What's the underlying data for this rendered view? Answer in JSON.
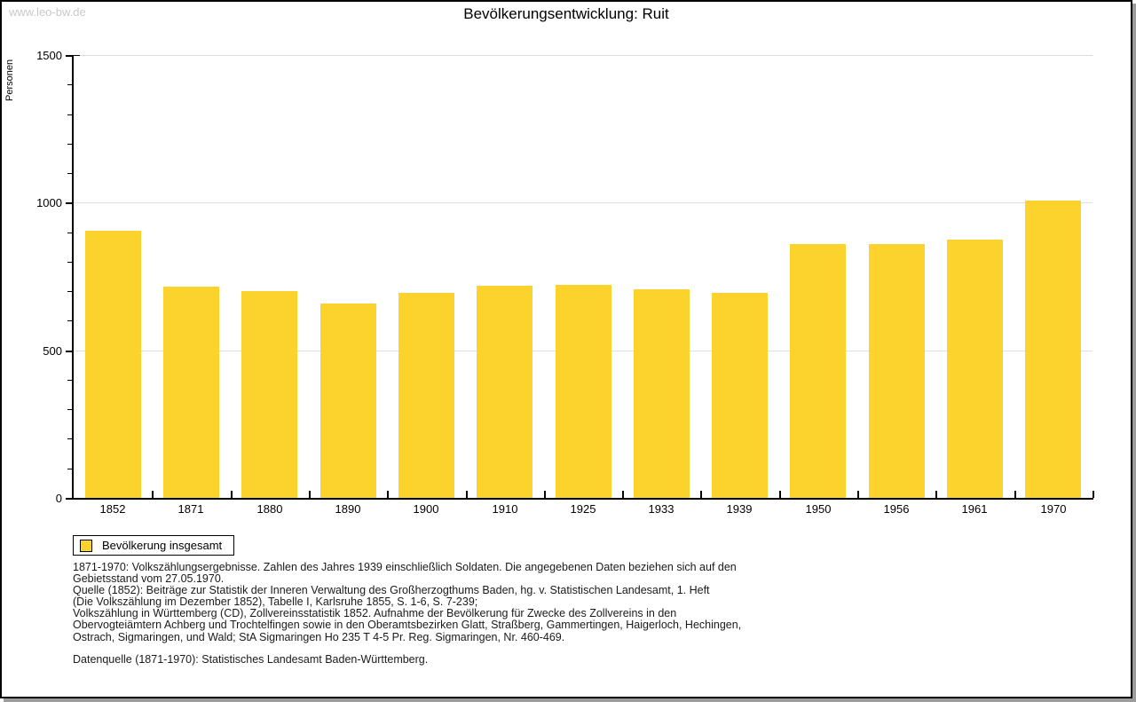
{
  "page": {
    "watermark": "www.leo-bw.de",
    "title": "Bevölkerungsentwicklung: Ruit"
  },
  "chart_data": {
    "type": "bar",
    "title": "Bevölkerungsentwicklung: Ruit",
    "ylabel": "Personen",
    "xlabel": "",
    "categories": [
      "1852",
      "1871",
      "1880",
      "1890",
      "1900",
      "1910",
      "1925",
      "1933",
      "1939",
      "1950",
      "1956",
      "1961",
      "1970"
    ],
    "values": [
      905,
      714,
      700,
      658,
      693,
      719,
      722,
      705,
      695,
      860,
      860,
      876,
      1008
    ],
    "ylim": [
      0,
      1500
    ],
    "ytick_labels": [
      "0",
      "500",
      "1000",
      "1500"
    ],
    "yticks_major": [
      0,
      500,
      1000,
      1500
    ],
    "ytick_minor_step": 100,
    "grid": "horizontal-major",
    "legend_position": "bottom-left",
    "series_name": "Bevölkerung insgesamt",
    "bar_color": "#FCD22D"
  },
  "legend": {
    "label": "Bevölkerung insgesamt",
    "swatch_color": "#FCD22D"
  },
  "footnotes": {
    "lines": [
      "1871-1970: Volkszählungsergebnisse. Zahlen des Jahres 1939 einschließlich Soldaten. Die angegebenen Daten beziehen sich auf den",
      "Gebietsstand vom 27.05.1970.",
      "Quelle (1852): Beiträge zur Statistik der Inneren Verwaltung des Großherzogthums Baden, hg. v. Statistischen Landesamt, 1. Heft",
      "(Die Volkszählung im Dezember 1852), Tabelle I, Karlsruhe 1855, S. 1-6, S. 7-239;",
      "Volkszählung in Württemberg (CD), Zollvereinsstatistik 1852. Aufnahme der Bevölkerung für Zwecke des Zollvereins in den",
      "Obervogteiämtern Achberg und Trochtelfingen sowie in den Oberamtsbezirken Glatt, Straßberg, Gammertingen, Haigerloch, Hechingen,",
      "Ostrach, Sigmaringen, und Wald; StA Sigmaringen Ho 235 T 4-5 Pr. Reg. Sigmaringen, Nr. 460-469."
    ],
    "datasource": "Datenquelle (1871-1970): Statistisches Landesamt Baden-Württemberg."
  },
  "colors": {
    "bar": "#FCD22D",
    "gridline": "#DEDEDE",
    "axis": "#000000",
    "watermark_text": "#C8C8C8",
    "footnote_text": "#1A1A1A",
    "background": "#FFFFFF"
  }
}
